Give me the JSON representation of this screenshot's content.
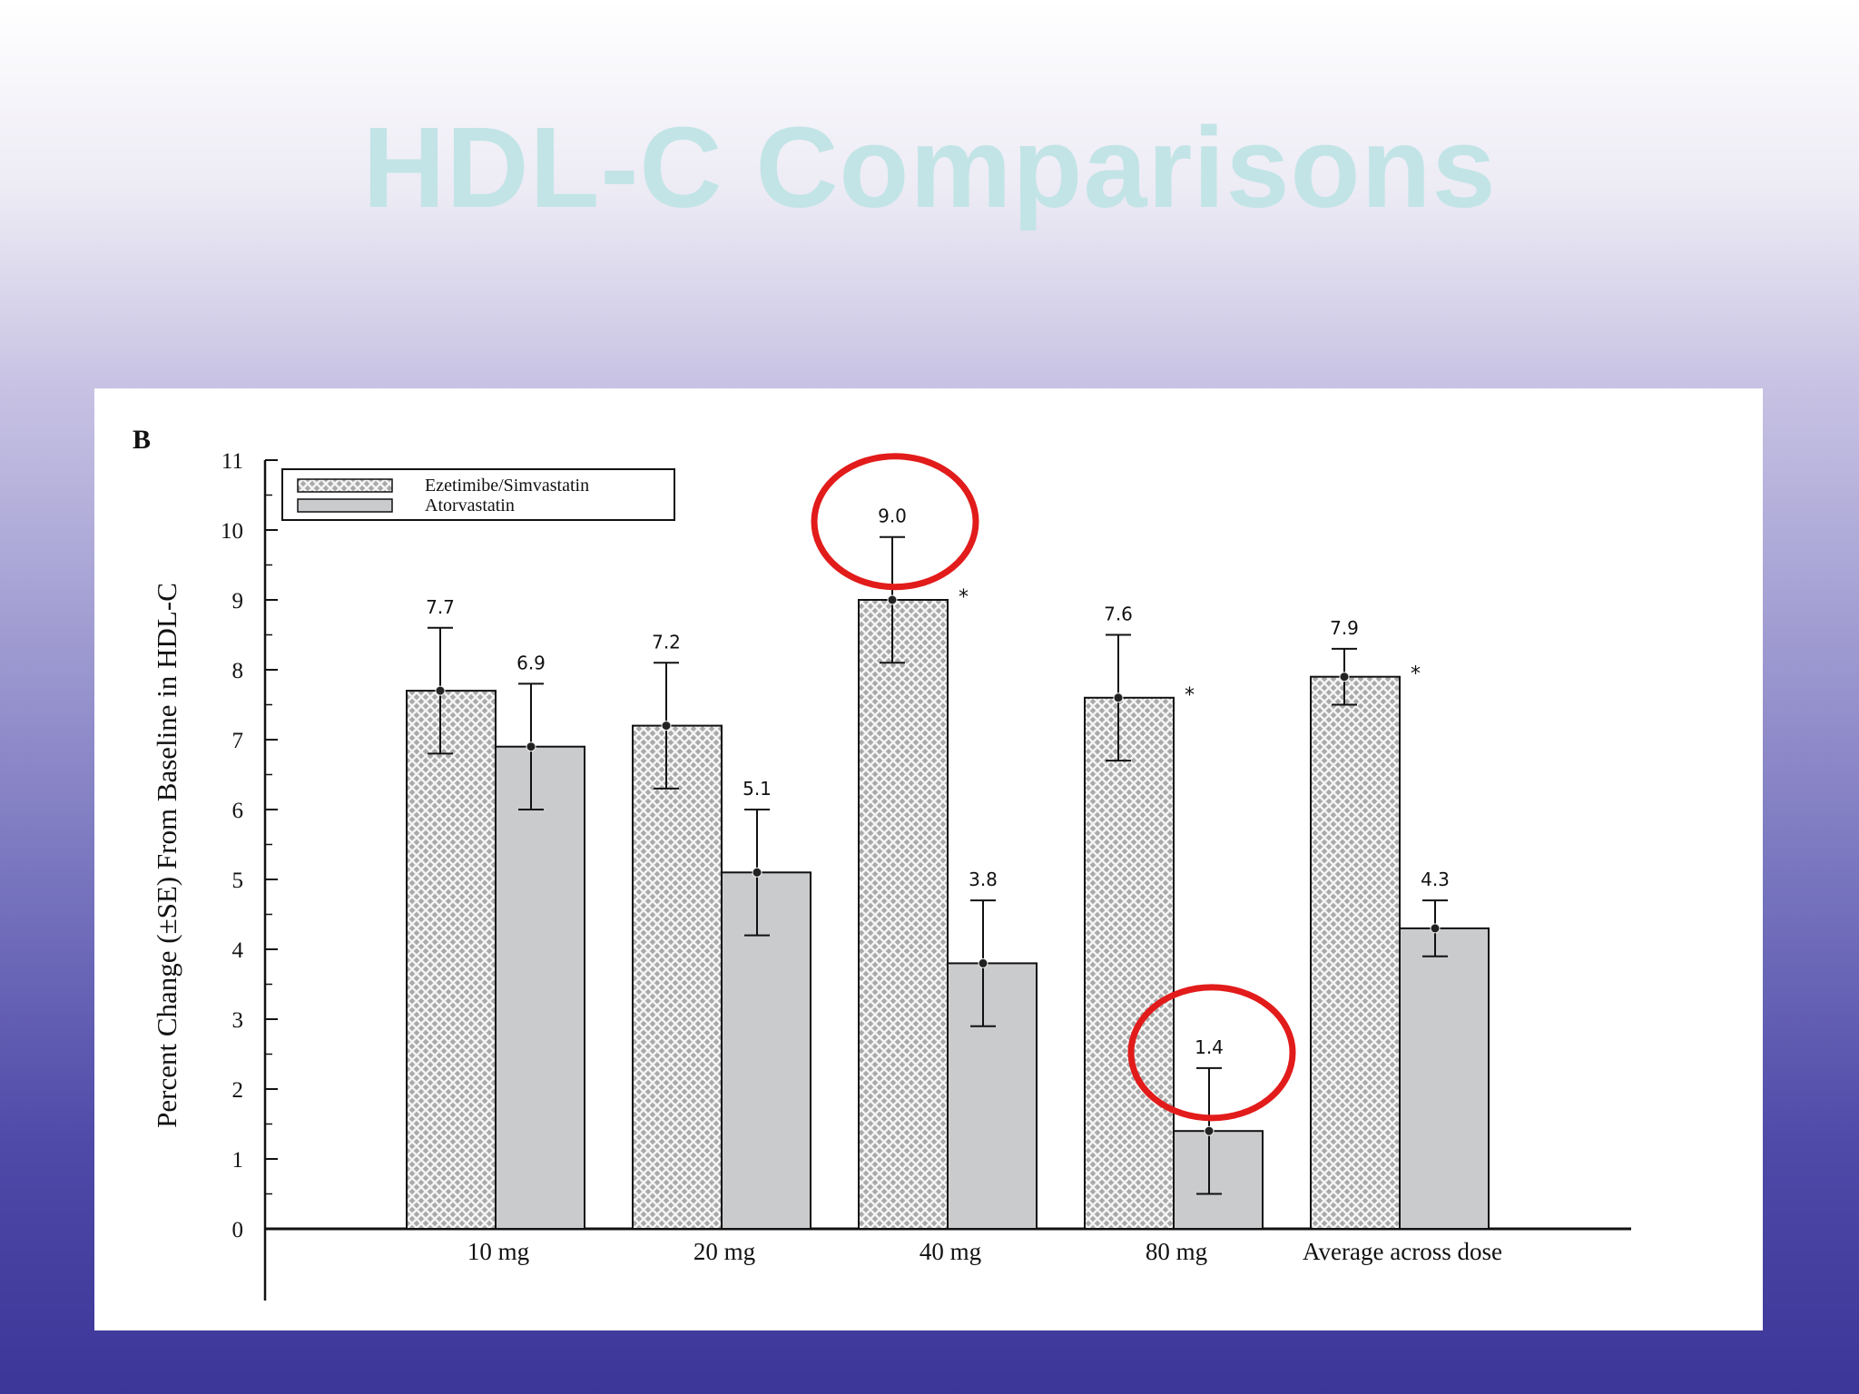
{
  "slide": {
    "title": "HDL-C Comparisons"
  },
  "colors": {
    "title": "#c2e4e6",
    "bar_pattern_fill": "#a8a8a8",
    "bar_solid": "#cacbcd",
    "highlight_circle": "#e21b1b"
  },
  "chart_data": {
    "type": "bar",
    "panel_label": "B",
    "ylabel": "Percent Change (±SE) From Baseline in HDL-C",
    "xlabel": "",
    "ylim": [
      0,
      11
    ],
    "yticks": [
      "0",
      "1",
      "2",
      "3",
      "4",
      "5",
      "6",
      "7",
      "8",
      "9",
      "10",
      "11"
    ],
    "categories": [
      "10 mg",
      "20 mg",
      "40 mg",
      "80 mg",
      "Average across dose"
    ],
    "legend_position": "top-left",
    "series": [
      {
        "name": "Ezetimibe/Simvastatin",
        "pattern": "crosshatch",
        "values": [
          7.7,
          7.2,
          9.0,
          7.6,
          7.9
        ],
        "labels": [
          "7.7",
          "7.2",
          "9.0",
          "7.6",
          "7.9"
        ],
        "se": [
          0.9,
          0.9,
          0.9,
          0.9,
          0.4
        ],
        "significance": [
          "",
          "",
          "*",
          "*",
          "*"
        ]
      },
      {
        "name": "Atorvastatin",
        "pattern": "solid",
        "values": [
          6.9,
          5.1,
          3.8,
          1.4,
          4.3
        ],
        "labels": [
          "6.9",
          "5.1",
          "3.8",
          "1.4",
          "4.3"
        ],
        "se": [
          0.9,
          0.9,
          0.9,
          0.9,
          0.4
        ],
        "significance": [
          "",
          "",
          "",
          "",
          ""
        ]
      }
    ],
    "highlights": [
      {
        "category": "40 mg",
        "series": "Ezetimibe/Simvastatin"
      },
      {
        "category": "80 mg",
        "series": "Atorvastatin"
      }
    ]
  }
}
